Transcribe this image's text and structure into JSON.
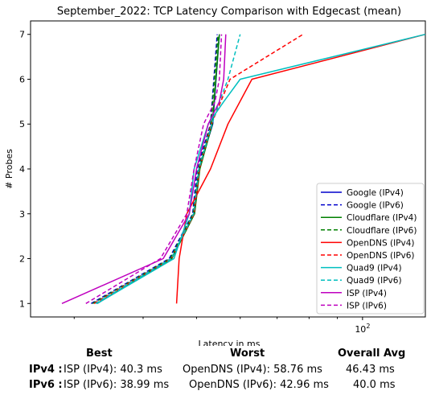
{
  "chart_data": {
    "type": "line",
    "title": "September_2022: TCP Latency Comparison with Edgecast (mean)",
    "xlabel": "Latency in ms",
    "ylabel": "# Probes",
    "xscale": "log",
    "xlim": [
      25,
      130
    ],
    "ylim": [
      0.7,
      7.3
    ],
    "yticks": [
      1,
      2,
      3,
      4,
      5,
      6,
      7
    ],
    "xtick_labels": [
      {
        "value": 100,
        "label": "10^2"
      }
    ],
    "grid": false,
    "legend_position": "lower-right",
    "series": [
      {
        "name": "Google (IPv4)",
        "color": "#0000cc",
        "dash": "solid",
        "x": [
          33,
          45,
          49.5,
          50.5,
          53.5,
          55
        ],
        "y": [
          1,
          2,
          3,
          4,
          5,
          7
        ]
      },
      {
        "name": "Google (IPv6)",
        "color": "#0000cc",
        "dash": "dashed",
        "x": [
          32.2,
          44.6,
          49.2,
          50.1,
          53,
          54.5
        ],
        "y": [
          1,
          2,
          3,
          4,
          5,
          7
        ]
      },
      {
        "name": "Cloudflare (IPv4)",
        "color": "#008000",
        "dash": "solid",
        "x": [
          33,
          45.1,
          49.6,
          50.7,
          53.4,
          55
        ],
        "y": [
          1,
          2,
          3,
          4,
          5,
          7
        ]
      },
      {
        "name": "Cloudflare (IPv6)",
        "color": "#008000",
        "dash": "dashed",
        "x": [
          32.4,
          44.8,
          49.3,
          50.4,
          53.1,
          54.7
        ],
        "y": [
          1,
          2,
          3,
          4,
          5,
          7
        ]
      },
      {
        "name": "OpenDNS (IPv4)",
        "color": "#ff0000",
        "dash": "solid",
        "x": [
          46,
          46.5,
          48,
          53,
          57,
          63,
          130
        ],
        "y": [
          1,
          2,
          3,
          4,
          5,
          6,
          7
        ]
      },
      {
        "name": "OpenDNS (IPv6)",
        "color": "#ff0000",
        "dash": "dashed",
        "x": [
          32.6,
          45,
          49.5,
          50.6,
          53.2,
          57.5,
          78
        ],
        "y": [
          1,
          2,
          3,
          4,
          5,
          6,
          7
        ]
      },
      {
        "name": "Quad9 (IPv4)",
        "color": "#00bfbf",
        "dash": "solid",
        "x": [
          33,
          45.5,
          48.5,
          49.5,
          52.5,
          56,
          60,
          130
        ],
        "y": [
          1,
          2,
          3,
          4,
          5,
          5.5,
          6,
          7
        ]
      },
      {
        "name": "Quad9 (IPv6)",
        "color": "#00bfbf",
        "dash": "dashed",
        "x": [
          32.8,
          45,
          49.4,
          50.5,
          53.3,
          55,
          57,
          60
        ],
        "y": [
          1,
          2,
          3,
          4,
          5,
          5.5,
          6,
          7
        ]
      },
      {
        "name": "ISP (IPv4)",
        "color": "#bf00bf",
        "dash": "solid",
        "x": [
          28.5,
          43.5,
          48.5,
          50,
          52.5,
          55,
          56,
          56.5
        ],
        "y": [
          1,
          2,
          3,
          4,
          5,
          5.5,
          6,
          7
        ]
      },
      {
        "name": "ISP (IPv6)",
        "color": "#bf00bf",
        "dash": "dashed",
        "x": [
          31.5,
          43,
          48,
          49.5,
          51.5,
          54,
          55,
          55.5
        ],
        "y": [
          1,
          2,
          3,
          4,
          5,
          5.5,
          6,
          7
        ]
      }
    ]
  },
  "summary": {
    "headers": {
      "best": "Best",
      "worst": "Worst",
      "avg": "Overall Avg"
    },
    "rows": [
      {
        "label": "IPv4 :",
        "best": "ISP (IPv4): 40.3 ms",
        "worst": "OpenDNS (IPv4): 58.76 ms",
        "avg": "46.43 ms"
      },
      {
        "label": "IPv6 :",
        "best": "ISP (IPv6): 38.99 ms",
        "worst": "OpenDNS (IPv6): 42.96 ms",
        "avg": "40.0 ms"
      }
    ]
  }
}
